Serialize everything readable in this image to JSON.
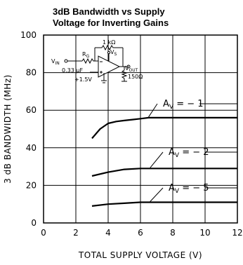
{
  "chart_data": {
    "type": "line",
    "title_line1": "3dB Bandwidth vs Supply",
    "title_line2": "Voltage for Inverting Gains",
    "xlabel": "TOTAL SUPPLY VOLTAGE (V)",
    "ylabel": "3 dB BANDWIDTH (MHz)",
    "xlim": [
      0,
      12
    ],
    "ylim": [
      0,
      100
    ],
    "xticks": [
      "0",
      "2",
      "4",
      "6",
      "8",
      "10",
      "12"
    ],
    "yticks": [
      "0",
      "20",
      "40",
      "60",
      "80",
      "100"
    ],
    "grid": true,
    "series": [
      {
        "name": "AV = -1",
        "label_main": "A",
        "label_sub": "V",
        "label_rest": " = − 1",
        "x": [
          3,
          3.5,
          4,
          4.5,
          5,
          5.5,
          6,
          6.5,
          7,
          8,
          9,
          10,
          11,
          12
        ],
        "y": [
          45,
          50,
          53,
          54,
          54.5,
          55,
          55.5,
          56,
          56,
          56,
          56,
          56,
          56,
          56
        ]
      },
      {
        "name": "AV = -2",
        "label_main": "A",
        "label_sub": "V",
        "label_rest": " = − 2",
        "x": [
          3,
          4,
          5,
          6,
          7,
          8,
          9,
          10,
          11,
          12
        ],
        "y": [
          25,
          27,
          28.5,
          29,
          29,
          29,
          29,
          29,
          29,
          29
        ]
      },
      {
        "name": "AV = -5",
        "label_main": "A",
        "label_sub": "V",
        "label_rest": " = − 5",
        "x": [
          3,
          4,
          5,
          6,
          7,
          8,
          9,
          10,
          11,
          12
        ],
        "y": [
          9,
          10,
          10.5,
          11,
          11,
          11,
          11,
          11,
          11,
          11
        ]
      }
    ],
    "circuit": {
      "vin": "V",
      "vin_sub": "IN",
      "rg": "R",
      "rg_sub": "G",
      "rf": "1 kΩ",
      "cap": "0.33 μF",
      "bias": "+1.5V",
      "vs": "V",
      "vs_sub": "S",
      "vout": "V",
      "vout_sub": "OUT",
      "rload": "150Ω"
    }
  }
}
